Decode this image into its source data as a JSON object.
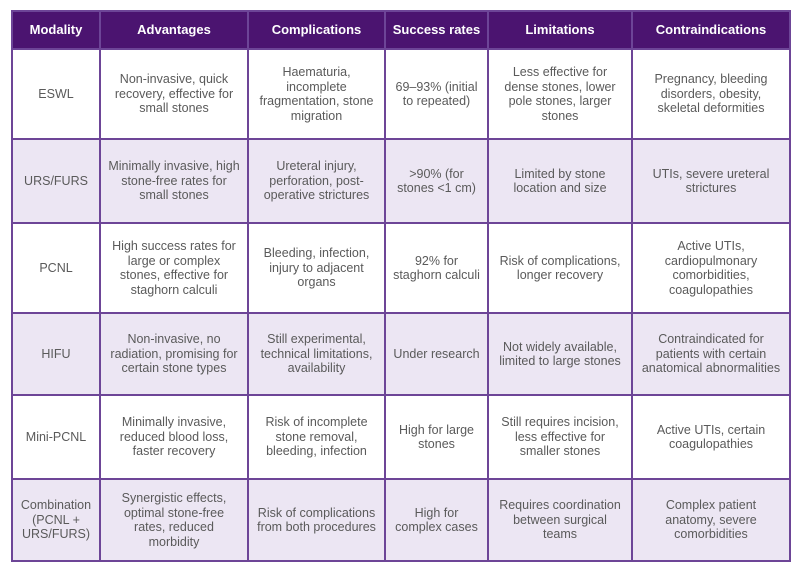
{
  "headers": [
    "Modality",
    "Advantages",
    "Complications",
    "Success rates",
    "Limitations",
    "Contraindications"
  ],
  "rows": [
    [
      "ESWL",
      "Non-invasive, quick recovery, effective for small stones",
      "Haematuria, incomplete fragmentation, stone migration",
      "69–93% (initial to repeated)",
      "Less effective for dense stones, lower pole stones, larger stones",
      "Pregnancy, bleeding disorders, obesity, skeletal deformities"
    ],
    [
      "URS/FURS",
      "Minimally invasive, high stone-free rates for small stones",
      "Ureteral injury, perforation, post-operative strictures",
      ">90% (for stones <1 cm)",
      "Limited by stone location and size",
      "UTIs, severe ureteral strictures"
    ],
    [
      "PCNL",
      "High success rates for large or complex stones, effective for staghorn calculi",
      "Bleeding, infection, injury to adjacent organs",
      "92% for staghorn calculi",
      "Risk of complications, longer recovery",
      "Active UTIs, cardiopulmonary comorbidities, coagulopathies"
    ],
    [
      "HIFU",
      "Non-invasive, no radiation, promising for certain stone types",
      "Still experimental, technical limitations, availability",
      "Under research",
      "Not widely available, limited to large stones",
      "Contraindicated for patients with certain anatomical abnormalities"
    ],
    [
      "Mini-PCNL",
      "Minimally invasive, reduced blood loss, faster recovery",
      "Risk of incomplete stone removal, bleeding, infection",
      "High for large stones",
      "Still requires incision, less effective for smaller stones",
      "Active UTIs, certain coagulopathies"
    ],
    [
      "Combination (PCNL + URS/FURS)",
      "Synergistic effects, optimal stone-free rates, reduced morbidity",
      "Risk of complications from both procedures",
      "High for complex cases",
      "Requires coordination between surgical teams",
      "Complex patient anatomy, severe comorbidities"
    ]
  ],
  "colors": {
    "header": "#4b1470",
    "alt_row": "#ece6f3",
    "border": "#6d4597"
  }
}
